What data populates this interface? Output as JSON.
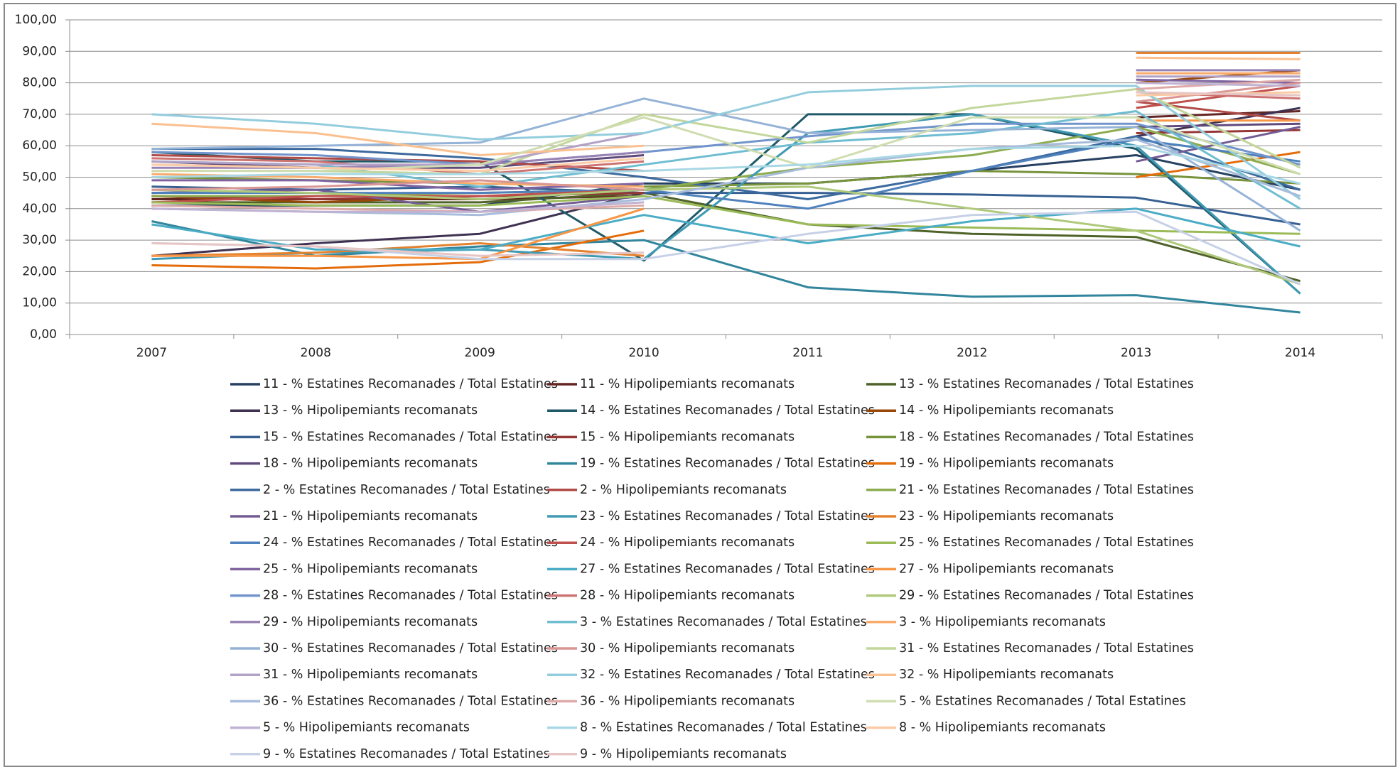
{
  "chart_data": {
    "type": "line",
    "categories": [
      "2007",
      "2008",
      "2009",
      "2010",
      "2011",
      "2012",
      "2013",
      "2014"
    ],
    "ylim": [
      0,
      100
    ],
    "yticks": [
      {
        "value": 0,
        "label": "0,00"
      },
      {
        "value": 10,
        "label": "10,00"
      },
      {
        "value": 20,
        "label": "20,00"
      },
      {
        "value": 30,
        "label": "30,00"
      },
      {
        "value": 40,
        "label": "40,00"
      },
      {
        "value": 50,
        "label": "50,00"
      },
      {
        "value": 60,
        "label": "60,00"
      },
      {
        "value": 70,
        "label": "70,00"
      },
      {
        "value": 80,
        "label": "80,00"
      },
      {
        "value": 90,
        "label": "90,00"
      },
      {
        "value": 100,
        "label": "100,00"
      }
    ],
    "grid": true,
    "series": [
      {
        "name": "11 - % Estatines Recomanades / Total Estatines",
        "color": "#254061",
        "values": [
          41,
          41,
          41,
          48,
          48,
          52,
          57,
          46
        ]
      },
      {
        "name": "11 - % Hipolipemiants recomanats",
        "color": "#632523",
        "values": [
          43,
          43,
          43,
          44,
          null,
          null,
          69,
          71
        ]
      },
      {
        "name": "13 - % Estatines Recomanades / Total Estatines",
        "color": "#4F6228",
        "values": [
          42,
          42,
          42,
          45,
          35,
          32,
          31,
          17
        ]
      },
      {
        "name": "13 - % Hipolipemiants recomanats",
        "color": "#3F3151",
        "values": [
          25,
          29,
          32,
          45,
          null,
          null,
          63,
          72
        ]
      },
      {
        "name": "14 - % Estatines Recomanades / Total Estatines",
        "color": "#215968",
        "values": [
          58,
          55,
          55,
          23.5,
          70,
          70,
          59,
          13
        ]
      },
      {
        "name": "14 - % Hipolipemiants recomanats",
        "color": "#984807",
        "values": [
          44,
          42,
          44,
          45,
          null,
          null,
          80,
          84
        ]
      },
      {
        "name": "15 - % Estatines Recomanades / Total Estatines",
        "color": "#376092",
        "values": [
          47,
          46,
          47,
          45,
          45,
          44.5,
          43.5,
          35
        ]
      },
      {
        "name": "15 - % Hipolipemiants recomanats",
        "color": "#953735",
        "values": [
          44,
          43,
          44,
          45,
          null,
          null,
          64,
          65
        ]
      },
      {
        "name": "18 - % Estatines Recomanades / Total Estatines",
        "color": "#77933C",
        "values": [
          50,
          49,
          48,
          47,
          48,
          52,
          51,
          48
        ]
      },
      {
        "name": "18 - % Hipolipemiants recomanats",
        "color": "#604A7B",
        "values": [
          55,
          53,
          53,
          57,
          null,
          null,
          66,
          67
        ]
      },
      {
        "name": "19 - % Estatines Recomanades / Total Estatines",
        "color": "#31859C",
        "values": [
          36,
          25,
          28,
          30,
          15,
          12,
          12.5,
          7
        ]
      },
      {
        "name": "19 - % Hipolipemiants recomanats",
        "color": "#E46C0A",
        "values": [
          22,
          21,
          23,
          33,
          null,
          null,
          50,
          58
        ]
      },
      {
        "name": "2 - % Estatines Recomanades / Total Estatines",
        "color": "#3D6A9E",
        "values": [
          59,
          59,
          56,
          50,
          43,
          52,
          63,
          46
        ]
      },
      {
        "name": "2 - % Hipolipemiants recomanats",
        "color": "#B04A47",
        "values": [
          57,
          56,
          55,
          52,
          null,
          null,
          74,
          68
        ]
      },
      {
        "name": "21 - % Estatines Recomanades / Total Estatines",
        "color": "#8CAC4F",
        "values": [
          44,
          44,
          45,
          46,
          53,
          57,
          66,
          51
        ]
      },
      {
        "name": "21 - % Hipolipemiants recomanats",
        "color": "#735B93",
        "values": [
          45,
          46,
          39,
          44,
          null,
          null,
          55,
          66
        ]
      },
      {
        "name": "23 - % Estatines Recomanades / Total Estatines",
        "color": "#3F9AB3",
        "values": [
          24,
          26,
          27,
          24,
          64,
          70,
          60,
          13
        ]
      },
      {
        "name": "23 - % Hipolipemiants recomanats",
        "color": "#E4822F",
        "values": [
          25,
          26,
          29,
          25,
          null,
          null,
          89.5,
          89.5
        ]
      },
      {
        "name": "24 - % Estatines Recomanades / Total Estatines",
        "color": "#4F81BD",
        "values": [
          45,
          45,
          45,
          46,
          40,
          52,
          62,
          55
        ]
      },
      {
        "name": "24 - % Hipolipemiants recomanats",
        "color": "#C0504D",
        "values": [
          42,
          44,
          44,
          46,
          null,
          null,
          72,
          79
        ]
      },
      {
        "name": "25 - % Estatines Recomanades / Total Estatines",
        "color": "#9BBB59",
        "values": [
          42,
          41,
          41,
          44,
          35,
          34,
          33,
          32
        ]
      },
      {
        "name": "25 - % Hipolipemiants recomanats",
        "color": "#8064A2",
        "values": [
          49,
          49,
          46,
          48,
          null,
          null,
          81,
          80
        ]
      },
      {
        "name": "27 - % Estatines Recomanades / Total Estatines",
        "color": "#4BACC6",
        "values": [
          35,
          27,
          27,
          38,
          29,
          36,
          40,
          28
        ]
      },
      {
        "name": "27 - % Hipolipemiants recomanats",
        "color": "#F79646",
        "values": [
          25,
          25,
          24,
          40,
          null,
          null,
          68,
          68
        ]
      },
      {
        "name": "28 - % Estatines Recomanades / Total Estatines",
        "color": "#7094CB",
        "values": [
          58,
          57,
          54,
          58,
          63,
          67,
          67,
          54
        ]
      },
      {
        "name": "28 - % Hipolipemiants recomanats",
        "color": "#CD7371",
        "values": [
          56,
          55,
          51,
          55,
          null,
          null,
          77,
          75
        ]
      },
      {
        "name": "29 - % Estatines Recomanades / Total Estatines",
        "color": "#AFC97A",
        "values": [
          46,
          45,
          43,
          46,
          47,
          40,
          33,
          16
        ]
      },
      {
        "name": "29 - % Hipolipemiants recomanats",
        "color": "#9983B5",
        "values": [
          53,
          53,
          54,
          58,
          null,
          null,
          84,
          84
        ]
      },
      {
        "name": "3 - % Estatines Recomanades / Total Estatines",
        "color": "#6FBDD1",
        "values": [
          55,
          54,
          47,
          54,
          61,
          64,
          71,
          40
        ]
      },
      {
        "name": "3 - % Hipolipemiants recomanats",
        "color": "#F9AB6B",
        "values": [
          51,
          50,
          48,
          47,
          null,
          null,
          83,
          83
        ]
      },
      {
        "name": "30 - % Estatines Recomanades / Total Estatines",
        "color": "#95B3D7",
        "values": [
          59,
          60,
          61,
          75,
          64,
          65,
          66,
          33
        ]
      },
      {
        "name": "30 - % Hipolipemiants recomanats",
        "color": "#D99694",
        "values": [
          46,
          47,
          49,
          46,
          null,
          null,
          74,
          80
        ]
      },
      {
        "name": "31 - % Estatines Recomanades / Total Estatines",
        "color": "#C3D69B",
        "values": [
          52,
          52,
          51,
          70,
          61,
          72,
          78,
          53
        ]
      },
      {
        "name": "31 - % Hipolipemiants recomanats",
        "color": "#B3A2C7",
        "values": [
          55,
          54,
          54,
          64,
          null,
          null,
          82,
          82
        ]
      },
      {
        "name": "32 - % Estatines Recomanades / Total Estatines",
        "color": "#93CDDD",
        "values": [
          70,
          67,
          62,
          64,
          77,
          79,
          79,
          43
        ]
      },
      {
        "name": "32 - % Hipolipemiants recomanats",
        "color": "#FAC090",
        "values": [
          67,
          64,
          57,
          60,
          null,
          null,
          88,
          87.5
        ]
      },
      {
        "name": "36 - % Estatines Recomanades / Total Estatines",
        "color": "#A7BCDA",
        "values": [
          40,
          39,
          38,
          43,
          53,
          59,
          62,
          44
        ]
      },
      {
        "name": "36 - % Hipolipemiants recomanats",
        "color": "#DEAAA8",
        "values": [
          41,
          40,
          39,
          41,
          null,
          null,
          78,
          81
        ]
      },
      {
        "name": "5 - % Estatines Recomanades / Total Estatines",
        "color": "#CFDDB0",
        "values": [
          52,
          52,
          54,
          69,
          53,
          69,
          69,
          51
        ]
      },
      {
        "name": "5 - % Hipolipemiants recomanats",
        "color": "#BFB2D2",
        "values": [
          40,
          39,
          39,
          42,
          null,
          null,
          80,
          79
        ]
      },
      {
        "name": "8 - % Estatines Recomanades / Total Estatines",
        "color": "#A9D8E4",
        "values": [
          50,
          51,
          51,
          52,
          54,
          59,
          60,
          48
        ]
      },
      {
        "name": "8 - % Hipolipemiants recomanats",
        "color": "#FBCBA6",
        "values": [
          54,
          53,
          52,
          56,
          null,
          null,
          76,
          77
        ]
      },
      {
        "name": "9 - % Estatines Recomanades / Total Estatines",
        "color": "#C6D0E6",
        "values": [
          29,
          28,
          24,
          24,
          32,
          38,
          39,
          16
        ]
      },
      {
        "name": "9 - % Hipolipemiants recomanats",
        "color": "#E6C5C4",
        "values": [
          29,
          28,
          25,
          26,
          null,
          null,
          77,
          76
        ]
      }
    ]
  }
}
